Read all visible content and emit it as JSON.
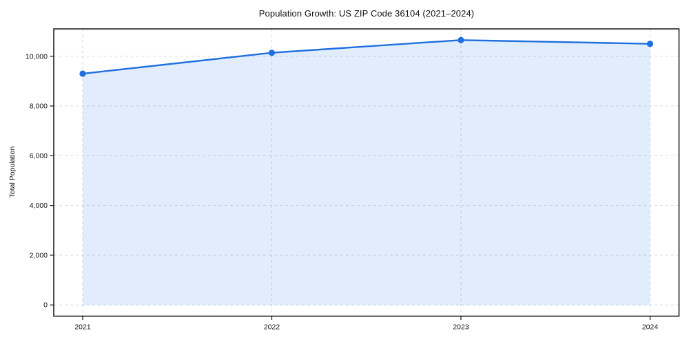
{
  "chart_data": {
    "type": "line",
    "title": "Population Growth: US ZIP Code 36104 (2021–2024)",
    "xlabel": "",
    "ylabel": "Total Population",
    "categories": [
      "2021",
      "2022",
      "2023",
      "2024"
    ],
    "series": [
      {
        "name": "Total Population",
        "values": [
          9300,
          10140,
          10650,
          10500
        ]
      }
    ],
    "y_ticks": [
      0,
      2000,
      4000,
      6000,
      8000,
      10000
    ],
    "y_tick_labels": [
      "0",
      "2,000",
      "4,000",
      "6,000",
      "8,000",
      "10,000"
    ],
    "ylim": [
      -450,
      11100
    ],
    "grid": "dashed",
    "legend": "none",
    "area_fill": true,
    "colors": {
      "line": "#1f6fe0",
      "marker": "#1f6fe0",
      "area_fill": "#1a73e8",
      "grid": "#d9d9d9",
      "axis_frame": "#111111",
      "text": "#111111"
    }
  }
}
